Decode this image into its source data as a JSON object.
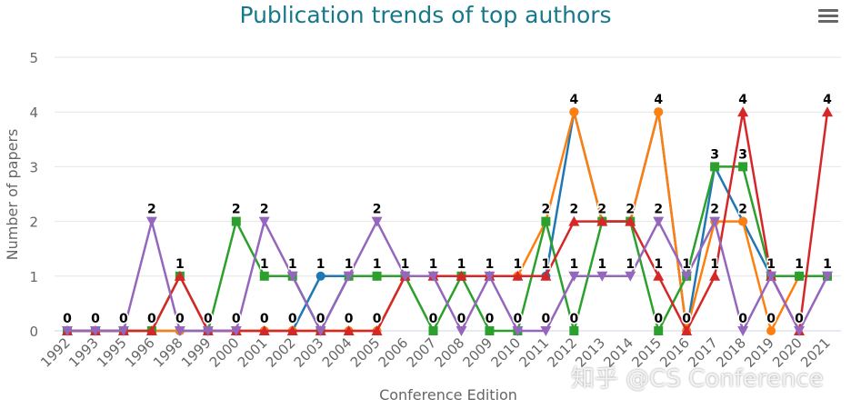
{
  "chart_data": {
    "type": "line",
    "title": "Publication trends of top authors",
    "xlabel": "Conference Edition",
    "ylabel": "Number of papers",
    "ylim": [
      0,
      5
    ],
    "yticks": [
      0,
      1,
      2,
      3,
      4,
      5
    ],
    "grid": true,
    "categories": [
      "1992",
      "1993",
      "1995",
      "1996",
      "1998",
      "1999",
      "2000",
      "2001",
      "2002",
      "2003",
      "2004",
      "2005",
      "2006",
      "2007",
      "2008",
      "2009",
      "2010",
      "2011",
      "2012",
      "2013",
      "2014",
      "2015",
      "2016",
      "2017",
      "2018",
      "2019",
      "2020",
      "2021"
    ],
    "series": [
      {
        "color": "#1f77b4",
        "marker": "circle",
        "values": [
          0,
          0,
          0,
          0,
          0,
          0,
          0,
          0,
          0,
          1,
          1,
          1,
          1,
          1,
          1,
          1,
          1,
          1,
          4,
          2,
          2,
          4,
          0,
          3,
          2,
          1,
          1,
          1
        ]
      },
      {
        "color": "#ff7f0e",
        "marker": "circle",
        "values": [
          0,
          0,
          0,
          0,
          0,
          0,
          0,
          0,
          0,
          0,
          0,
          0,
          1,
          1,
          1,
          1,
          1,
          2,
          4,
          2,
          2,
          4,
          0,
          2,
          2,
          0,
          1,
          1
        ]
      },
      {
        "color": "#2ca02c",
        "marker": "square",
        "values": [
          0,
          0,
          0,
          0,
          1,
          0,
          2,
          1,
          1,
          0,
          1,
          1,
          1,
          0,
          1,
          0,
          0,
          2,
          0,
          2,
          2,
          0,
          1,
          3,
          3,
          1,
          1,
          1
        ]
      },
      {
        "color": "#d62728",
        "marker": "triangle-up",
        "values": [
          0,
          0,
          0,
          0,
          1,
          0,
          0,
          0,
          0,
          0,
          0,
          0,
          1,
          1,
          1,
          1,
          1,
          1,
          2,
          2,
          2,
          1,
          0,
          1,
          4,
          1,
          0,
          4
        ]
      },
      {
        "color": "#9467bd",
        "marker": "triangle-down",
        "values": [
          0,
          0,
          0,
          2,
          0,
          0,
          0,
          2,
          1,
          0,
          1,
          2,
          1,
          1,
          0,
          1,
          0,
          0,
          1,
          1,
          1,
          2,
          1,
          2,
          0,
          1,
          0,
          1
        ]
      }
    ]
  },
  "menu_icon": "hamburger-menu-icon",
  "watermark": "知乎 @CS Conference"
}
